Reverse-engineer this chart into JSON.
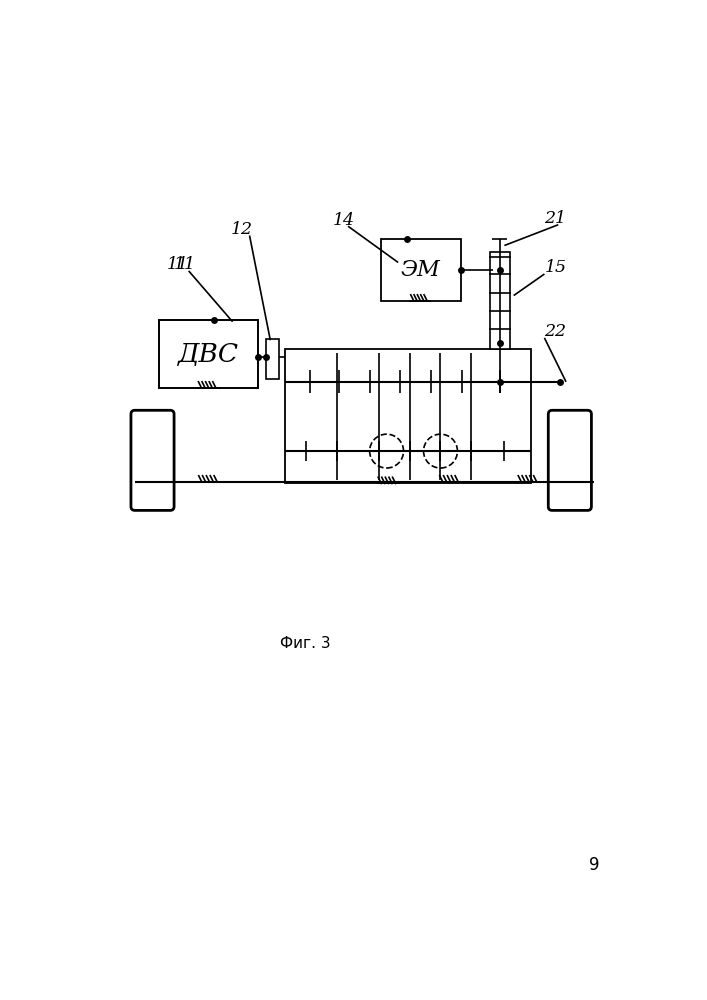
{
  "bg_color": "#ffffff",
  "fig_caption": "Фиг. 3",
  "page_number": "9",
  "dbs_label": "ДВС",
  "em_label": "ЭМ",
  "lw_main": 1.2,
  "lw_thick": 1.8
}
